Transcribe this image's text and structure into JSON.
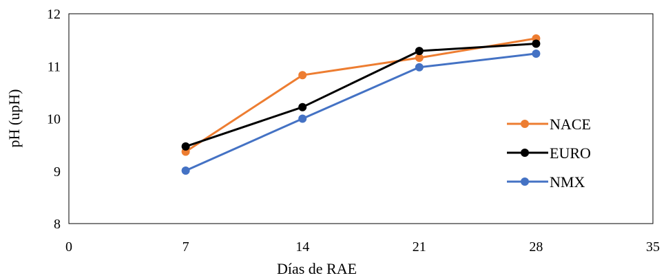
{
  "chart_data": {
    "type": "line",
    "title": "",
    "xlabel": "Días de RAE",
    "ylabel": "pH (upH)",
    "xlim": [
      0,
      35
    ],
    "ylim": [
      8,
      12
    ],
    "x_ticks": [
      0,
      7,
      14,
      21,
      28,
      35
    ],
    "y_ticks": [
      8,
      9,
      10,
      11,
      12
    ],
    "grid": false,
    "legend_position": "right",
    "x": [
      7,
      14,
      21,
      28
    ],
    "series": [
      {
        "name": "NACE",
        "color": "#ED7D31",
        "values": [
          9.37,
          10.83,
          11.16,
          11.53
        ]
      },
      {
        "name": "EURO",
        "color": "#000000",
        "values": [
          9.47,
          10.22,
          11.29,
          11.43
        ]
      },
      {
        "name": "NMX",
        "color": "#4472C4",
        "values": [
          9.01,
          10.0,
          10.98,
          11.24
        ]
      }
    ]
  }
}
